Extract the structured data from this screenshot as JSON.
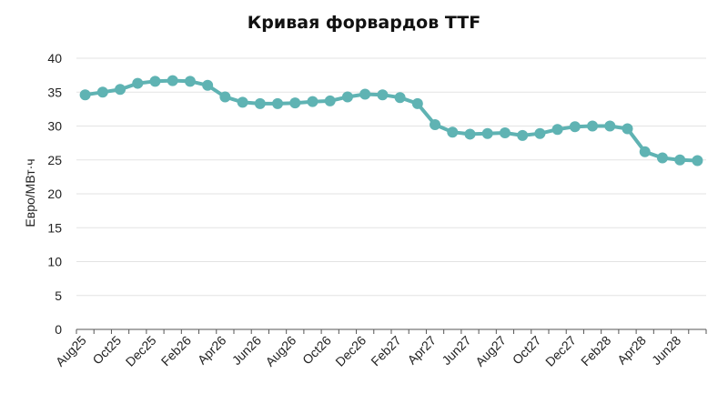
{
  "chart_data": {
    "type": "line",
    "title": "Кривая форвардов TTF",
    "xlabel": "",
    "ylabel": "Евро/МВт·ч",
    "ylim": [
      0,
      40
    ],
    "yticks": [
      0,
      5,
      10,
      15,
      20,
      25,
      30,
      35,
      40
    ],
    "grid": true,
    "legend": "none",
    "line_color": "#5fb3b3",
    "x_tick_labels": [
      "Aug25",
      "Oct25",
      "Dec25",
      "Feb26",
      "Apr26",
      "Jun26",
      "Aug26",
      "Oct26",
      "Dec26",
      "Feb27",
      "Apr27",
      "Jun27",
      "Aug27",
      "Oct27",
      "Dec27",
      "Feb28",
      "Apr28",
      "Jun28"
    ],
    "categories": [
      "Aug25",
      "Sep25",
      "Oct25",
      "Nov25",
      "Dec25",
      "Jan26",
      "Feb26",
      "Mar26",
      "Apr26",
      "May26",
      "Jun26",
      "Jul26",
      "Aug26",
      "Sep26",
      "Oct26",
      "Nov26",
      "Dec26",
      "Jan27",
      "Feb27",
      "Mar27",
      "Apr27",
      "May27",
      "Jun27",
      "Jul27",
      "Aug27",
      "Sep27",
      "Oct27",
      "Nov27",
      "Dec27",
      "Jan28",
      "Feb28",
      "Mar28",
      "Apr28",
      "May28",
      "Jun28",
      "Jul28"
    ],
    "values": [
      34.6,
      35.0,
      35.4,
      36.3,
      36.6,
      36.7,
      36.6,
      36.0,
      34.3,
      33.5,
      33.3,
      33.3,
      33.4,
      33.6,
      33.7,
      34.3,
      34.7,
      34.6,
      34.2,
      33.3,
      30.2,
      29.1,
      28.8,
      28.9,
      29.0,
      28.6,
      28.9,
      29.5,
      29.9,
      30.0,
      30.0,
      29.6,
      26.2,
      25.3,
      25.0,
      24.9
    ]
  }
}
